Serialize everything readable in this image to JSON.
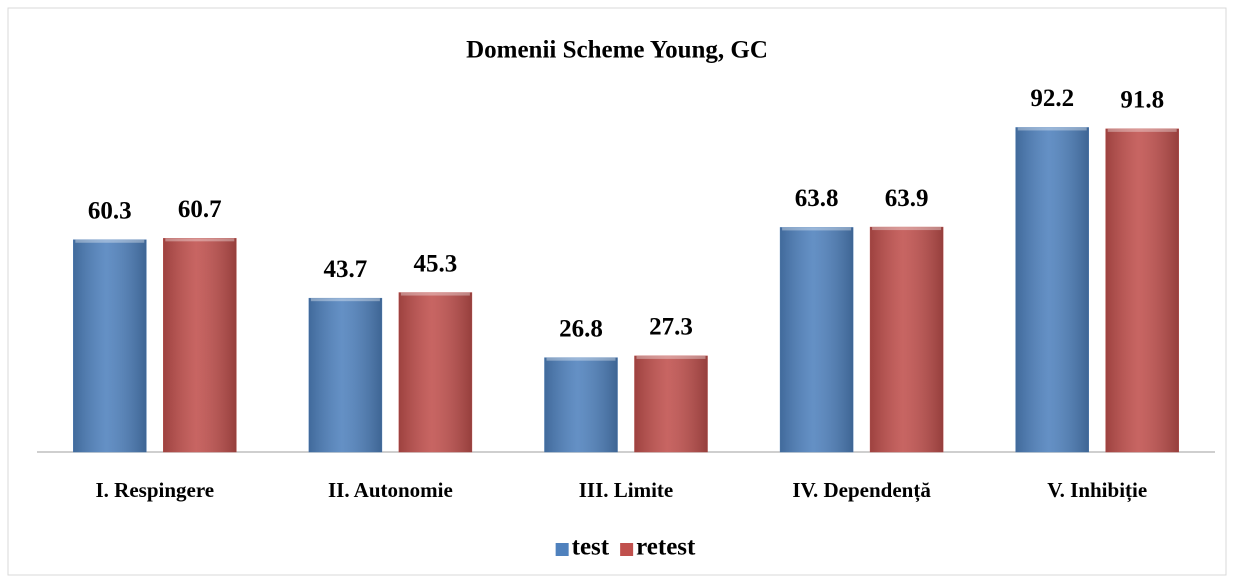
{
  "chart_data": {
    "type": "bar",
    "title": "Domenii Scheme Young, GC",
    "categories": [
      "I.  Respingere",
      "II. Autonomie",
      "III. Limite",
      "IV. Dependență",
      "V. Inhibiție"
    ],
    "series": [
      {
        "name": "test",
        "color": "#4f81bd",
        "values": [
          60.3,
          43.7,
          26.8,
          63.8,
          92.2
        ]
      },
      {
        "name": "retest",
        "color": "#c0504d",
        "values": [
          60.7,
          45.3,
          27.3,
          63.9,
          91.8
        ]
      }
    ],
    "ylim": [
      0,
      100
    ],
    "legend": "bottom"
  }
}
